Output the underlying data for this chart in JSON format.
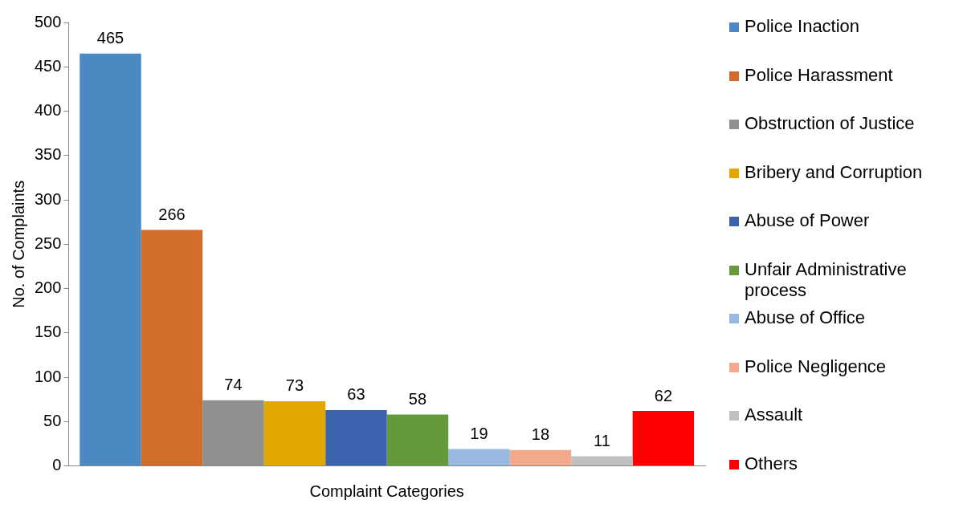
{
  "chart_data": {
    "type": "bar",
    "ylabel": "No. of Complaints",
    "xlabel": "Complaint Categories",
    "categories": [
      null
    ],
    "series": [
      {
        "name": "Police Inaction",
        "color": "#4a89c2",
        "values": [
          465
        ]
      },
      {
        "name": "Police Harassment",
        "color": "#d26c2a",
        "values": [
          266
        ]
      },
      {
        "name": "Obstruction of Justice",
        "color": "#8f8f8f",
        "values": [
          74
        ]
      },
      {
        "name": "Bribery and Corruption",
        "color": "#e2a800",
        "values": [
          73
        ]
      },
      {
        "name": "Abuse of Power",
        "color": "#3b63ae",
        "values": [
          63
        ]
      },
      {
        "name": "Unfair Administrative process",
        "color": "#649a3c",
        "values": [
          58
        ]
      },
      {
        "name": "Abuse of Office",
        "color": "#97b9e1",
        "values": [
          19
        ]
      },
      {
        "name": "Police Negligence",
        "color": "#f2a98c",
        "values": [
          18
        ]
      },
      {
        "name": "Assault",
        "color": "#bfbfbf",
        "values": [
          11
        ]
      },
      {
        "name": "Others",
        "color": "#ff0000",
        "values": [
          62
        ]
      }
    ],
    "ylim": [
      0,
      500
    ],
    "yticks": [
      0,
      50,
      100,
      150,
      200,
      250,
      300,
      350,
      400,
      450,
      500
    ],
    "grid": false,
    "legend": "right",
    "data_labels": true
  }
}
